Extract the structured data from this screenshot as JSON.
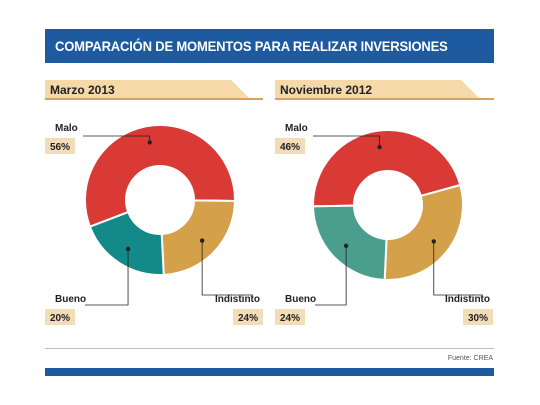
{
  "title": "COMPARACIÓN DE MOMENTOS PARA REALIZAR INVERSIONES",
  "source": "Fuente: CREA",
  "colors": {
    "banner": "#1e5aa0",
    "tab": "#f5d9a8",
    "tab_accent": "#d9a15a",
    "pct_box": "#f3dcb8",
    "malo": "#d93a36",
    "indistinto": "#d4a04a",
    "bueno_marzo": "#138a89",
    "bueno_nov": "#4a9e8d"
  },
  "chart_data": [
    {
      "type": "pie",
      "variant": "donut",
      "title": "Marzo 2013",
      "categories": [
        "Malo",
        "Indistinto",
        "Bueno"
      ],
      "values": [
        56,
        24,
        20
      ],
      "labels": [
        "56%",
        "24%",
        "20%"
      ]
    },
    {
      "type": "pie",
      "variant": "donut",
      "title": "Noviembre 2012",
      "categories": [
        "Malo",
        "Indistinto",
        "Bueno"
      ],
      "values": [
        46,
        30,
        24
      ],
      "labels": [
        "46%",
        "30%",
        "24%"
      ]
    }
  ]
}
